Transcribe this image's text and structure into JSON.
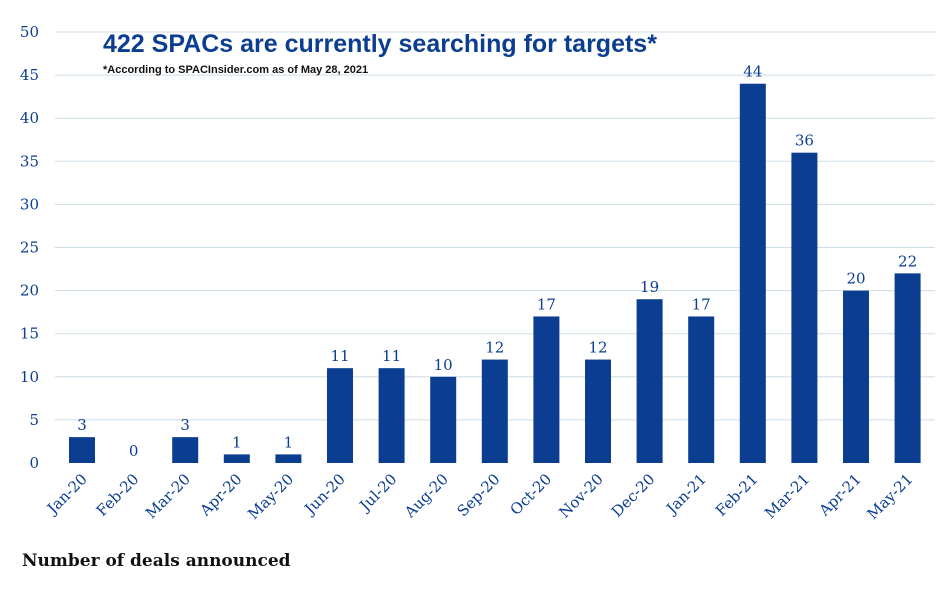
{
  "chart_data": {
    "type": "bar",
    "title": "422 SPACs are currently searching for targets*",
    "subtitle": "*According to SPACInsider.com as of May 28, 2021",
    "xlabel": "",
    "ylabel": "",
    "footer_label": "Number of deals announced",
    "categories": [
      "Jan-20",
      "Feb-20",
      "Mar-20",
      "Apr-20",
      "May-20",
      "Jun-20",
      "Jul-20",
      "Aug-20",
      "Sep-20",
      "Oct-20",
      "Nov-20",
      "Dec-20",
      "Jan-21",
      "Feb-21",
      "Mar-21",
      "Apr-21",
      "May-21"
    ],
    "values": [
      3,
      0,
      3,
      1,
      1,
      11,
      11,
      10,
      12,
      17,
      12,
      19,
      17,
      44,
      36,
      20,
      22
    ],
    "ylim": [
      0,
      50
    ],
    "yticks": [
      0,
      5,
      10,
      15,
      20,
      25,
      30,
      35,
      40,
      45,
      50
    ],
    "grid": true,
    "legend": "none",
    "bar_color": "#0b3d91"
  }
}
